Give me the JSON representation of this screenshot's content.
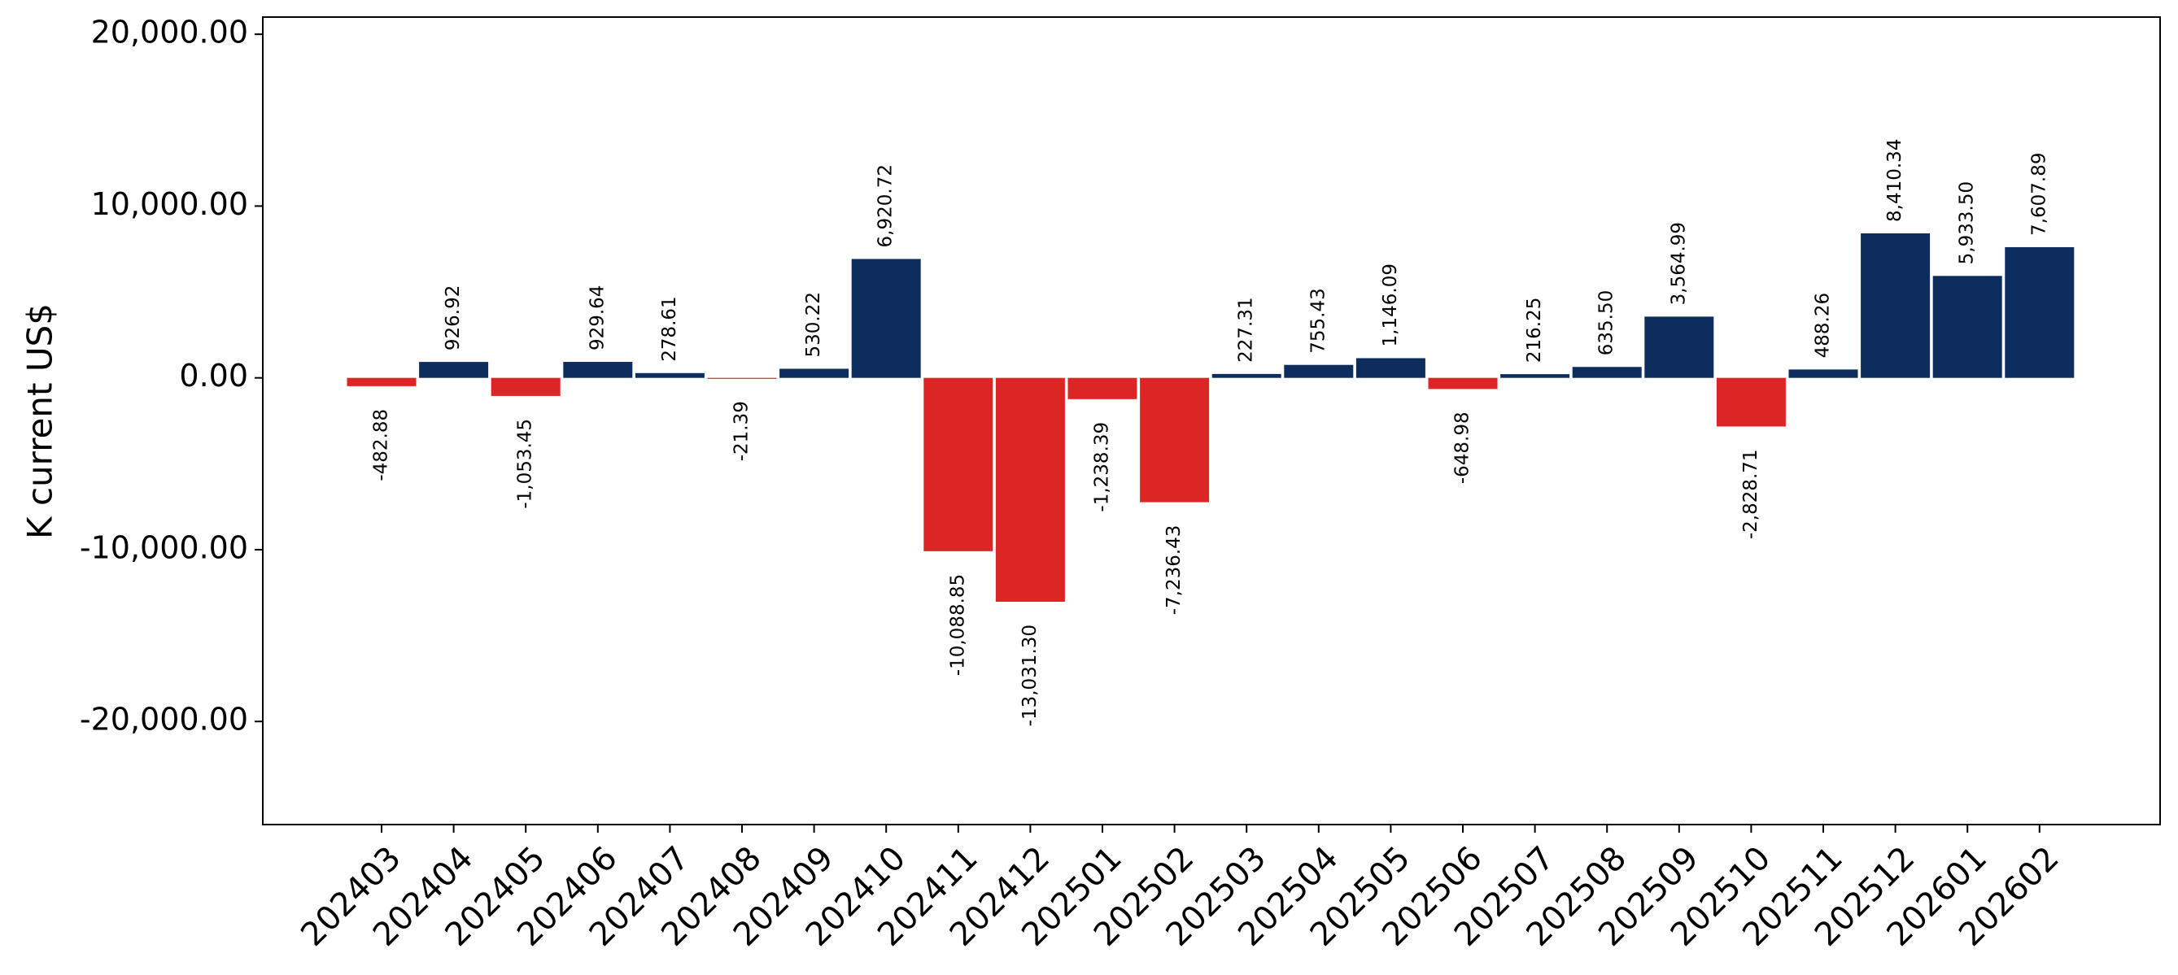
{
  "chart_data": {
    "type": "bar",
    "ylabel": "K current US$",
    "ylim": [
      -26000,
      21000
    ],
    "yticks": [
      20000,
      10000,
      0,
      -10000,
      -20000
    ],
    "ytick_labels": [
      "20,000.00",
      "10,000.00",
      "0.00",
      "-10,000.00",
      "-20,000.00"
    ],
    "grid": false,
    "colors": {
      "positive": "#0c2d5e",
      "negative": "#dc2626"
    },
    "categories": [
      "202403",
      "202404",
      "202405",
      "202406",
      "202407",
      "202408",
      "202409",
      "202410",
      "202411",
      "202412",
      "202501",
      "202502",
      "202503",
      "202504",
      "202505",
      "202506",
      "202507",
      "202508",
      "202509",
      "202510",
      "202511",
      "202512",
      "202601",
      "202602"
    ],
    "values": [
      -482.88,
      926.92,
      -1053.45,
      929.64,
      278.61,
      -21.39,
      530.22,
      6920.72,
      -10088.85,
      -13031.3,
      -1238.39,
      -7236.43,
      227.31,
      755.43,
      1146.09,
      -648.98,
      216.25,
      635.5,
      3564.99,
      -2828.71,
      488.26,
      8410.34,
      5933.5,
      7607.89
    ],
    "value_labels": [
      "-482.88",
      "926.92",
      "-1,053.45",
      "929.64",
      "278.61",
      "-21.39",
      "530.22",
      "6,920.72",
      "-10,088.85",
      "-13,031.30",
      "-1,238.39",
      "-7,236.43",
      "227.31",
      "755.43",
      "1,146.09",
      "-648.98",
      "216.25",
      "635.50",
      "3,564.99",
      "-2,828.71",
      "488.26",
      "8,410.34",
      "5,933.50",
      "7,607.89"
    ]
  }
}
